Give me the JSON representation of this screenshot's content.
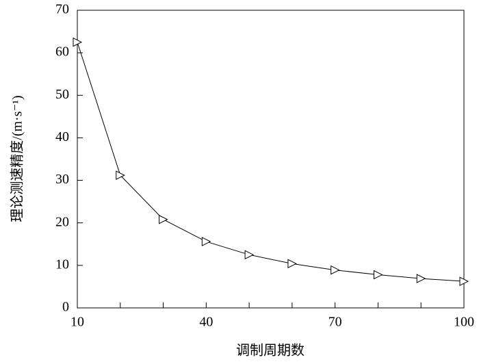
{
  "chart_data": {
    "type": "line",
    "x_label": "调制周期数",
    "y_label": "理论测速精度/(m·s⁻¹)",
    "x": [
      10,
      20,
      30,
      40,
      50,
      60,
      70,
      80,
      90,
      100
    ],
    "series": [
      {
        "color": "#000000",
        "marker": "triangle-right",
        "values": [
          62.5,
          31.2,
          20.8,
          15.6,
          12.5,
          10.4,
          8.9,
          7.8,
          6.9,
          6.25
        ]
      }
    ],
    "xlim": [
      10,
      100
    ],
    "xticks": [
      10,
      40,
      70,
      100
    ],
    "xminor_ticks": [
      20,
      30,
      50,
      60,
      80,
      90
    ],
    "ylim": [
      0,
      70
    ],
    "yticks": [
      0,
      10,
      20,
      30,
      40,
      50,
      60,
      70
    ]
  }
}
